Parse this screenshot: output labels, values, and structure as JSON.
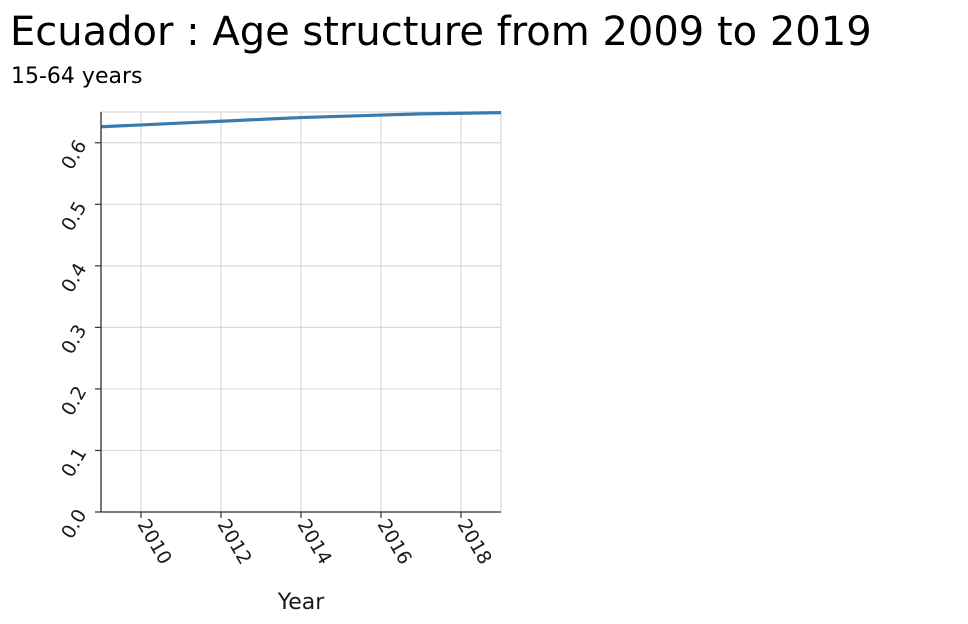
{
  "chart_data": {
    "type": "line",
    "title": "Ecuador : Age structure from 2009 to 2019",
    "subtitle": "15-64 years",
    "xlabel": "Year",
    "ylabel": "",
    "xlim": [
      2009,
      2019
    ],
    "ylim": [
      0,
      0.65
    ],
    "x_ticks": [
      {
        "value": 2010,
        "label": "2010"
      },
      {
        "value": 2012,
        "label": "2012"
      },
      {
        "value": 2014,
        "label": "2014"
      },
      {
        "value": 2016,
        "label": "2016"
      },
      {
        "value": 2018,
        "label": "2018"
      }
    ],
    "y_ticks": [
      {
        "value": 0.0,
        "label": "0.0"
      },
      {
        "value": 0.1,
        "label": "0.1"
      },
      {
        "value": 0.2,
        "label": "0.2"
      },
      {
        "value": 0.3,
        "label": "0.3"
      },
      {
        "value": 0.4,
        "label": "0.4"
      },
      {
        "value": 0.5,
        "label": "0.5"
      },
      {
        "value": 0.6,
        "label": "0.6"
      }
    ],
    "grid": true,
    "legend": "none",
    "series": [
      {
        "color": "#3a7bad",
        "x": [
          2009,
          2010,
          2011,
          2012,
          2013,
          2014,
          2015,
          2016,
          2017,
          2018,
          2019
        ],
        "y": [
          0.626,
          0.629,
          0.632,
          0.635,
          0.638,
          0.641,
          0.643,
          0.645,
          0.647,
          0.648,
          0.649
        ]
      }
    ]
  }
}
